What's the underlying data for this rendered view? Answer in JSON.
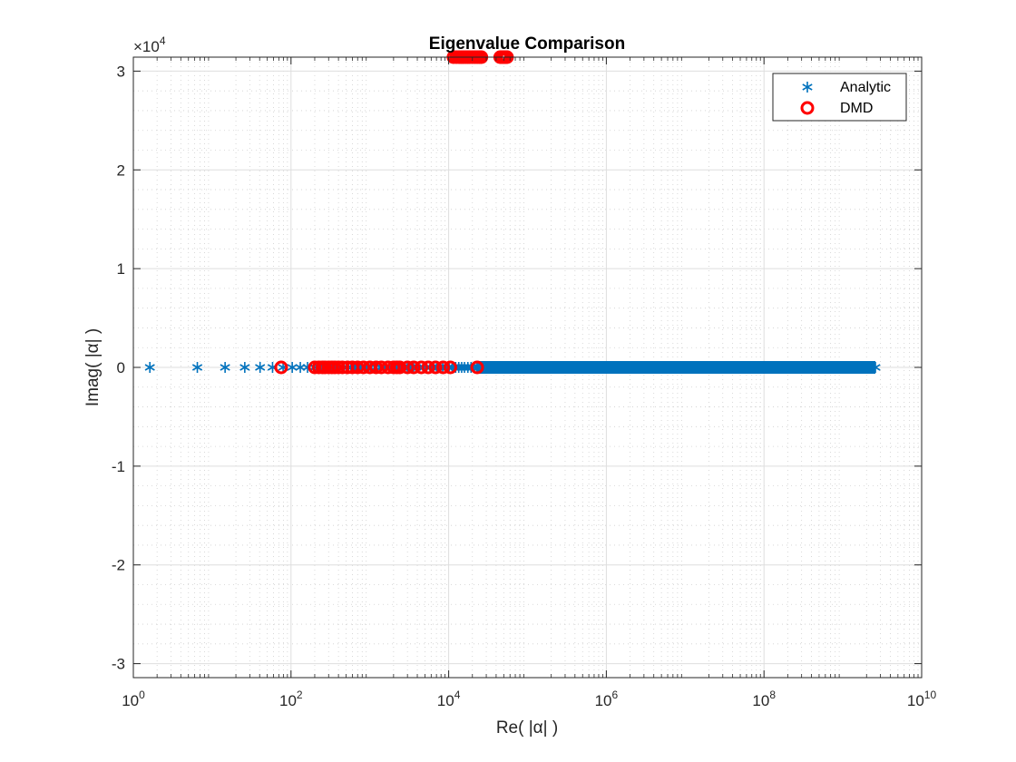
{
  "chart_data": {
    "type": "scatter",
    "title": "Eigenvalue Comparison",
    "xlabel": "Re( |α| )",
    "ylabel": "Imag( |α| )",
    "x_scale": "log",
    "xlim": [
      1,
      10000000000
    ],
    "ylim": [
      -31416,
      31416
    ],
    "x_ticks": [
      1,
      100,
      10000,
      1000000,
      100000000,
      10000000000
    ],
    "x_tick_labels": [
      {
        "base": "10",
        "exp": "0"
      },
      {
        "base": "10",
        "exp": "2"
      },
      {
        "base": "10",
        "exp": "4"
      },
      {
        "base": "10",
        "exp": "6"
      },
      {
        "base": "10",
        "exp": "8"
      },
      {
        "base": "10",
        "exp": "10"
      }
    ],
    "y_ticks": [
      -30000,
      -20000,
      -10000,
      0,
      10000,
      20000,
      30000
    ],
    "y_tick_labels": [
      "-3",
      "-2",
      "-1",
      "0",
      "1",
      "2",
      "3"
    ],
    "y_exponent": {
      "prefix": "×10",
      "exp": "4"
    },
    "grid": true,
    "minor_grid": true,
    "legend_position": "top-right",
    "series": [
      {
        "name": "Analytic",
        "marker": "asterisk",
        "color": "#0072BD",
        "points": {
          "x_series": "k^2 * 1.62, k = 1..40000",
          "x_min": 1.62,
          "x_max": 2590000000,
          "count": 40000,
          "y": 0
        }
      },
      {
        "name": "DMD",
        "marker": "circle",
        "color": "#FF0000",
        "x": [
          75,
          200,
          225,
          250,
          270,
          300,
          330,
          360,
          400,
          450,
          520,
          600,
          700,
          830,
          1000,
          1200,
          1400,
          1700,
          2000,
          2200,
          2400,
          3000,
          3600,
          4500,
          5500,
          6800,
          8500,
          10500,
          23000,
          11500,
          12500,
          13500,
          14500,
          15500,
          16500,
          17500,
          18500,
          20000,
          21500,
          23000,
          24500,
          26000,
          45000,
          47000,
          49000,
          51000,
          53000,
          55000
        ],
        "y": [
          0,
          0,
          0,
          0,
          0,
          0,
          0,
          0,
          0,
          0,
          0,
          0,
          0,
          0,
          0,
          0,
          0,
          0,
          0,
          0,
          0,
          0,
          0,
          0,
          0,
          0,
          0,
          0,
          0,
          31416,
          31416,
          31416,
          31416,
          31416,
          31416,
          31416,
          31416,
          31416,
          31416,
          31416,
          31416,
          31416,
          31416,
          31416,
          31416,
          31416,
          31416,
          31416
        ]
      }
    ]
  }
}
